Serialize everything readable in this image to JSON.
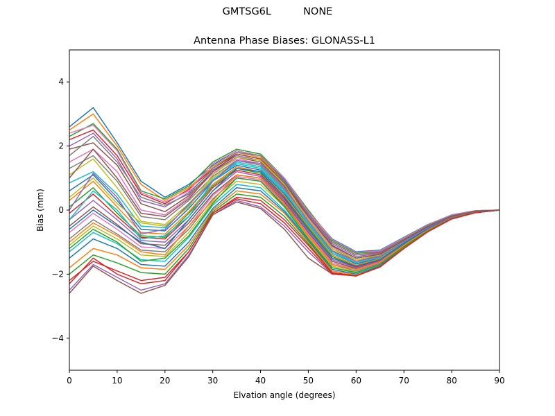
{
  "figure": {
    "suptitle": "GMTSG6L          NONE"
  },
  "chart_data": {
    "type": "line",
    "title": "Antenna Phase Biases: GLONASS-L1",
    "xlabel": "Elvation angle (degrees)",
    "ylabel": "Bias (mm)",
    "xlim": [
      0,
      90
    ],
    "ylim": [
      -5,
      5
    ],
    "xticks": [
      0,
      10,
      20,
      30,
      40,
      50,
      60,
      70,
      80,
      90
    ],
    "yticks": [
      -4,
      -2,
      0,
      2,
      4
    ],
    "xtick_labels": [
      "0",
      "10",
      "20",
      "30",
      "40",
      "50",
      "60",
      "70",
      "80",
      "90"
    ],
    "ytick_labels": [
      "−4",
      "−2",
      "0",
      "2",
      "4"
    ],
    "grid": false,
    "legend": false,
    "x": [
      0,
      5,
      10,
      15,
      20,
      25,
      30,
      35,
      40,
      45,
      50,
      55,
      60,
      65,
      70,
      75,
      80,
      85,
      90
    ],
    "palette": [
      "#1f77b4",
      "#ff7f0e",
      "#2ca02c",
      "#d62728",
      "#9467bd",
      "#8c564b",
      "#e377c2",
      "#7f7f7f",
      "#bcbd22",
      "#17becf"
    ],
    "series": [
      {
        "values": [
          2.6,
          3.2,
          2.1,
          0.9,
          0.4,
          0.8,
          1.4,
          1.85,
          1.7,
          0.95,
          -0.05,
          -0.9,
          -1.3,
          -1.25,
          -0.85,
          -0.45,
          -0.15,
          -0.02,
          0
        ]
      },
      {
        "values": [
          2.5,
          3.0,
          2.0,
          0.8,
          0.3,
          0.7,
          1.35,
          1.8,
          1.65,
          0.9,
          -0.1,
          -0.95,
          -1.35,
          -1.3,
          -0.88,
          -0.47,
          -0.16,
          -0.02,
          0
        ]
      },
      {
        "values": [
          2.3,
          2.7,
          1.9,
          0.6,
          0.35,
          0.75,
          1.5,
          1.9,
          1.75,
          1.0,
          0.0,
          -0.95,
          -1.35,
          -1.28,
          -0.86,
          -0.46,
          -0.15,
          -0.02,
          0
        ]
      },
      {
        "values": [
          2.2,
          2.5,
          1.7,
          0.5,
          0.2,
          0.65,
          1.3,
          1.75,
          1.6,
          0.85,
          -0.12,
          -1.0,
          -1.4,
          -1.32,
          -0.9,
          -0.48,
          -0.17,
          -0.03,
          0
        ]
      },
      {
        "values": [
          2.0,
          2.4,
          1.6,
          0.3,
          0.1,
          0.55,
          1.25,
          1.7,
          1.55,
          0.8,
          -0.15,
          -1.05,
          -1.45,
          -1.35,
          -0.92,
          -0.5,
          -0.18,
          -0.03,
          0
        ]
      },
      {
        "values": [
          1.9,
          2.1,
          1.4,
          0.2,
          -0.05,
          0.45,
          1.2,
          1.65,
          1.5,
          0.75,
          -0.2,
          -1.1,
          -1.5,
          -1.38,
          -0.94,
          -0.51,
          -0.19,
          -0.03,
          0
        ]
      },
      {
        "values": [
          1.5,
          1.9,
          1.2,
          0.0,
          -0.15,
          0.4,
          1.15,
          1.6,
          1.45,
          0.7,
          -0.25,
          -1.15,
          -1.55,
          -1.4,
          -0.95,
          -0.52,
          -0.2,
          -0.04,
          0
        ]
      },
      {
        "values": [
          1.3,
          1.7,
          0.9,
          -0.2,
          -0.3,
          0.3,
          1.05,
          1.55,
          1.4,
          0.65,
          -0.3,
          -1.2,
          -1.6,
          -1.42,
          -0.96,
          -0.53,
          -0.2,
          -0.04,
          0
        ]
      },
      {
        "values": [
          1.1,
          1.6,
          0.7,
          -0.35,
          -0.45,
          0.2,
          1.0,
          1.5,
          1.35,
          0.6,
          -0.35,
          -1.25,
          -1.62,
          -1.45,
          -0.97,
          -0.54,
          -0.21,
          -0.04,
          0
        ]
      },
      {
        "values": [
          0.85,
          1.2,
          0.5,
          -0.5,
          -0.55,
          0.15,
          0.95,
          1.45,
          1.3,
          0.55,
          -0.4,
          -1.3,
          -1.65,
          -1.47,
          -0.98,
          -0.55,
          -0.22,
          -0.04,
          0
        ]
      },
      {
        "values": [
          0.6,
          1.1,
          0.3,
          -0.6,
          -0.65,
          0.05,
          0.9,
          1.4,
          1.25,
          0.5,
          -0.45,
          -1.35,
          -1.68,
          -1.5,
          -1.0,
          -0.56,
          -0.22,
          -0.05,
          0
        ]
      },
      {
        "values": [
          0.3,
          0.9,
          0.1,
          -0.7,
          -0.75,
          -0.05,
          0.8,
          1.35,
          1.2,
          0.45,
          -0.5,
          -1.4,
          -1.72,
          -1.52,
          -1.02,
          -0.57,
          -0.23,
          -0.05,
          0
        ]
      },
      {
        "values": [
          0.1,
          0.7,
          -0.1,
          -0.8,
          -0.85,
          -0.1,
          0.75,
          1.3,
          1.15,
          0.4,
          -0.55,
          -1.45,
          -1.75,
          -1.55,
          -1.03,
          -0.58,
          -0.23,
          -0.05,
          0
        ]
      },
      {
        "values": [
          -0.1,
          0.5,
          -0.2,
          -0.85,
          -0.9,
          -0.2,
          0.7,
          1.25,
          1.1,
          0.35,
          -0.6,
          -1.5,
          -1.78,
          -1.57,
          -1.05,
          -0.59,
          -0.24,
          -0.05,
          0
        ]
      },
      {
        "values": [
          -0.3,
          0.3,
          -0.3,
          -0.95,
          -1.0,
          -0.3,
          0.6,
          1.2,
          1.05,
          0.3,
          -0.65,
          -1.55,
          -1.8,
          -1.6,
          -1.06,
          -0.6,
          -0.24,
          -0.06,
          0
        ]
      },
      {
        "values": [
          -0.5,
          0.1,
          -0.45,
          -1.05,
          -1.1,
          -0.4,
          0.5,
          1.1,
          1.0,
          0.25,
          -0.7,
          -1.6,
          -1.83,
          -1.62,
          -1.08,
          -0.61,
          -0.25,
          -0.06,
          0
        ]
      },
      {
        "values": [
          -0.7,
          -0.1,
          -0.6,
          -1.15,
          -1.2,
          -0.5,
          0.45,
          1.05,
          0.95,
          0.2,
          -0.75,
          -1.65,
          -1.86,
          -1.65,
          -1.1,
          -0.62,
          -0.25,
          -0.06,
          0
        ]
      },
      {
        "values": [
          -0.9,
          -0.3,
          -0.75,
          -1.25,
          -1.3,
          -0.6,
          0.35,
          1.0,
          0.9,
          0.15,
          -0.8,
          -1.7,
          -1.9,
          -1.67,
          -1.12,
          -0.63,
          -0.26,
          -0.06,
          0
        ]
      },
      {
        "values": [
          -1.1,
          -0.5,
          -0.9,
          -1.4,
          -1.45,
          -0.7,
          0.25,
          0.9,
          0.8,
          0.1,
          -0.85,
          -1.75,
          -1.93,
          -1.7,
          -1.13,
          -0.64,
          -0.26,
          -0.07,
          0
        ]
      },
      {
        "values": [
          -1.3,
          -0.7,
          -1.05,
          -1.55,
          -1.6,
          -0.85,
          0.15,
          0.8,
          0.7,
          0.0,
          -0.9,
          -1.8,
          -1.96,
          -1.72,
          -1.15,
          -0.65,
          -0.27,
          -0.07,
          0
        ]
      },
      {
        "values": [
          -1.5,
          -0.9,
          -1.2,
          -1.7,
          -1.75,
          -1.0,
          0.05,
          0.7,
          0.6,
          -0.05,
          -0.95,
          -1.85,
          -2.0,
          -1.75,
          -1.16,
          -0.66,
          -0.27,
          -0.07,
          0
        ]
      },
      {
        "values": [
          -1.8,
          -1.2,
          -1.4,
          -1.8,
          -1.85,
          -1.1,
          0.0,
          0.6,
          0.5,
          -0.1,
          -1.0,
          -1.9,
          -2.02,
          -1.77,
          -1.18,
          -0.67,
          -0.28,
          -0.07,
          0
        ]
      },
      {
        "values": [
          -2.0,
          -1.4,
          -1.65,
          -1.95,
          -2.0,
          -1.2,
          -0.05,
          0.5,
          0.4,
          -0.2,
          -1.05,
          -1.95,
          -2.05,
          -1.78,
          -1.19,
          -0.68,
          -0.28,
          -0.08,
          0
        ]
      },
      {
        "values": [
          -2.2,
          -1.6,
          -1.9,
          -2.2,
          -2.1,
          -1.3,
          -0.1,
          0.4,
          0.3,
          -0.3,
          -1.1,
          -1.95,
          -2.05,
          -1.78,
          -1.2,
          -0.68,
          -0.28,
          -0.08,
          0
        ]
      },
      {
        "values": [
          -2.5,
          -1.7,
          -2.1,
          -2.5,
          -2.3,
          -1.4,
          -0.15,
          0.3,
          0.1,
          -0.5,
          -1.3,
          -2.0,
          -2.05,
          -1.78,
          -1.2,
          -0.68,
          -0.28,
          -0.08,
          0
        ]
      },
      {
        "values": [
          -2.6,
          -1.75,
          -2.2,
          -2.6,
          -2.35,
          -1.45,
          -0.15,
          0.25,
          0.05,
          -0.6,
          -1.5,
          -2.0,
          -2.05,
          -1.75,
          -1.2,
          -0.66,
          -0.27,
          -0.08,
          0
        ]
      },
      {
        "values": [
          2.4,
          2.65,
          1.85,
          0.55,
          0.25,
          0.6,
          1.45,
          1.85,
          1.7,
          1.0,
          -0.05,
          -0.92,
          -1.32,
          -1.27,
          -0.87,
          -0.46,
          -0.15,
          -0.02,
          0
        ]
      },
      {
        "values": [
          1.7,
          2.3,
          1.5,
          0.4,
          0.15,
          0.5,
          1.3,
          1.8,
          1.7,
          0.9,
          -0.1,
          -1.0,
          -1.4,
          -1.3,
          -0.9,
          -0.48,
          -0.17,
          -0.03,
          0
        ]
      },
      {
        "values": [
          0.4,
          1.0,
          0.2,
          -0.4,
          -0.5,
          0.1,
          1.1,
          1.65,
          1.55,
          0.8,
          -0.3,
          -1.2,
          -1.55,
          -1.4,
          -0.95,
          -0.52,
          -0.2,
          -0.04,
          0
        ]
      },
      {
        "values": [
          -0.3,
          0.6,
          0.0,
          -0.9,
          -0.8,
          -0.2,
          0.9,
          1.5,
          1.35,
          0.6,
          -0.45,
          -1.35,
          -1.65,
          -1.48,
          -1.0,
          -0.55,
          -0.22,
          -0.05,
          0
        ]
      },
      {
        "values": [
          -0.6,
          0.0,
          -0.5,
          -1.0,
          -1.2,
          -0.3,
          0.6,
          1.3,
          1.2,
          0.4,
          -0.6,
          -1.5,
          -1.75,
          -1.55,
          -1.04,
          -0.58,
          -0.23,
          -0.05,
          0
        ]
      },
      {
        "values": [
          -1.0,
          -0.4,
          -0.8,
          -1.3,
          -1.4,
          -0.5,
          0.3,
          1.1,
          1.0,
          0.2,
          -0.8,
          -1.7,
          -1.85,
          -1.62,
          -1.1,
          -0.62,
          -0.25,
          -0.06,
          0
        ]
      },
      {
        "values": [
          -1.2,
          -0.6,
          -1.0,
          -1.6,
          -1.5,
          -0.8,
          0.2,
          1.0,
          0.9,
          0.1,
          -0.9,
          -1.8,
          -1.95,
          -1.7,
          -1.14,
          -0.65,
          -0.26,
          -0.07,
          0
        ]
      },
      {
        "values": [
          -2.3,
          -1.5,
          -2.0,
          -2.3,
          -2.2,
          -1.3,
          -0.1,
          0.35,
          0.2,
          -0.4,
          -1.2,
          -1.98,
          -2.06,
          -1.77,
          -1.2,
          -0.67,
          -0.27,
          -0.08,
          0
        ]
      },
      {
        "values": [
          0.0,
          1.15,
          0.4,
          -0.75,
          -0.6,
          0.2,
          0.9,
          1.55,
          1.45,
          0.7,
          -0.35,
          -1.28,
          -1.6,
          -1.45,
          -0.98,
          -0.54,
          -0.21,
          -0.04,
          0
        ]
      },
      {
        "values": [
          1.0,
          1.9,
          1.0,
          -0.1,
          -0.2,
          0.35,
          1.2,
          1.75,
          1.6,
          0.85,
          -0.2,
          -1.12,
          -1.5,
          -1.38,
          -0.94,
          -0.51,
          -0.19,
          -0.03,
          0
        ]
      }
    ]
  }
}
